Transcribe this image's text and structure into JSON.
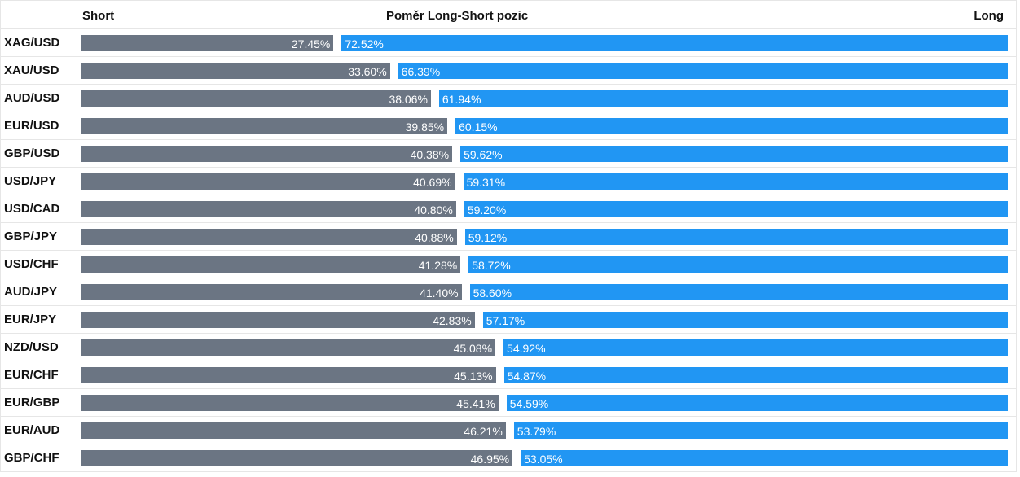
{
  "header": {
    "short_label": "Short",
    "title": "Poměr Long-Short pozic",
    "long_label": "Long"
  },
  "colors": {
    "short": "#6b7583",
    "long": "#2196f3"
  },
  "chart_data": {
    "type": "bar",
    "stacked": true,
    "orientation": "horizontal",
    "title": "Poměr Long-Short pozic",
    "categories": [
      "XAG/USD",
      "XAU/USD",
      "AUD/USD",
      "EUR/USD",
      "GBP/USD",
      "USD/JPY",
      "USD/CAD",
      "GBP/JPY",
      "USD/CHF",
      "AUD/JPY",
      "EUR/JPY",
      "NZD/USD",
      "EUR/CHF",
      "EUR/GBP",
      "EUR/AUD",
      "GBP/CHF"
    ],
    "series": [
      {
        "name": "Short",
        "values": [
          27.45,
          33.6,
          38.06,
          39.85,
          40.38,
          40.69,
          40.8,
          40.88,
          41.28,
          41.4,
          42.83,
          45.08,
          45.13,
          45.41,
          46.21,
          46.95
        ]
      },
      {
        "name": "Long",
        "values": [
          72.52,
          66.39,
          61.94,
          60.15,
          59.62,
          59.31,
          59.2,
          59.12,
          58.72,
          58.6,
          57.17,
          54.92,
          54.87,
          54.59,
          53.79,
          53.05
        ]
      }
    ],
    "value_labels": {
      "short": [
        "27.45%",
        "33.60%",
        "38.06%",
        "39.85%",
        "40.38%",
        "40.69%",
        "40.80%",
        "40.88%",
        "41.28%",
        "41.40%",
        "42.83%",
        "45.08%",
        "45.13%",
        "45.41%",
        "46.21%",
        "46.95%"
      ],
      "long": [
        "72.52%",
        "66.39%",
        "61.94%",
        "60.15%",
        "59.62%",
        "59.31%",
        "59.20%",
        "59.12%",
        "58.72%",
        "58.60%",
        "57.17%",
        "54.92%",
        "54.87%",
        "54.59%",
        "53.79%",
        "53.05%"
      ]
    },
    "xlim": [
      0,
      100
    ],
    "grid": false
  }
}
